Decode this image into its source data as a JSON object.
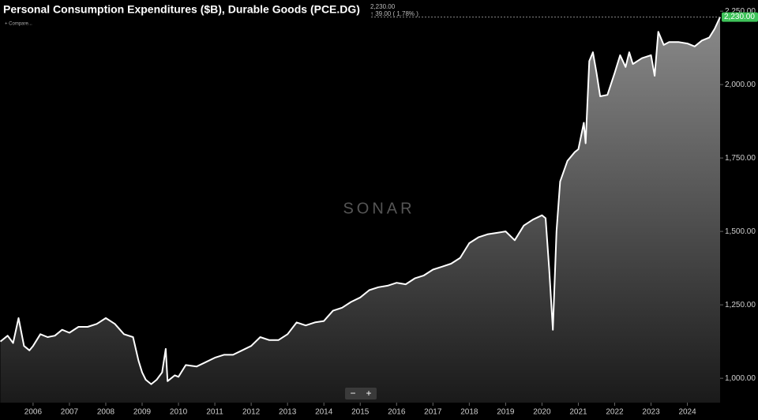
{
  "header": {
    "price": "2,230.00",
    "change": "↑ 39.00 ( 1.78% )",
    "compare": "+ Compare...",
    "watermark": "SONAR",
    "zoom_out": "−",
    "zoom_in": "+"
  },
  "chart_data": {
    "type": "area",
    "title": "Personal Consumption Expenditures ($B), Durable Goods (PCE.DG)",
    "color": "#ffffff",
    "last_color": "#3fc35a",
    "last_value": {
      "value": 2230,
      "label": "2,230.00"
    },
    "x": [
      2005.1,
      2005.3,
      2005.45,
      2005.6,
      2005.75,
      2005.9,
      2006.0,
      2006.2,
      2006.4,
      2006.6,
      2006.8,
      2007.0,
      2007.25,
      2007.5,
      2007.75,
      2008.0,
      2008.25,
      2008.5,
      2008.75,
      2008.9,
      2009.0,
      2009.1,
      2009.25,
      2009.4,
      2009.55,
      2009.65,
      2009.7,
      2009.9,
      2010.0,
      2010.2,
      2010.5,
      2010.75,
      2011.0,
      2011.25,
      2011.5,
      2011.75,
      2012.0,
      2012.25,
      2012.5,
      2012.75,
      2013.0,
      2013.25,
      2013.5,
      2013.75,
      2014.0,
      2014.25,
      2014.5,
      2014.75,
      2015.0,
      2015.25,
      2015.5,
      2015.75,
      2016.0,
      2016.25,
      2016.5,
      2016.75,
      2017.0,
      2017.25,
      2017.5,
      2017.75,
      2018.0,
      2018.25,
      2018.5,
      2018.75,
      2019.0,
      2019.25,
      2019.5,
      2019.75,
      2020.0,
      2020.1,
      2020.2,
      2020.3,
      2020.4,
      2020.5,
      2020.7,
      2020.9,
      2021.0,
      2021.15,
      2021.2,
      2021.3,
      2021.4,
      2021.5,
      2021.6,
      2021.8,
      2022.0,
      2022.15,
      2022.3,
      2022.4,
      2022.5,
      2022.75,
      2023.0,
      2023.1,
      2023.2,
      2023.35,
      2023.5,
      2023.75,
      2024.0,
      2024.2,
      2024.4,
      2024.6,
      2024.75,
      2024.9
    ],
    "values": [
      1125,
      1145,
      1120,
      1205,
      1110,
      1095,
      1110,
      1150,
      1140,
      1145,
      1165,
      1155,
      1175,
      1175,
      1185,
      1205,
      1185,
      1150,
      1140,
      1060,
      1020,
      995,
      980,
      995,
      1020,
      1100,
      990,
      1010,
      1005,
      1045,
      1040,
      1055,
      1070,
      1080,
      1080,
      1095,
      1110,
      1140,
      1130,
      1130,
      1150,
      1190,
      1180,
      1190,
      1195,
      1230,
      1240,
      1260,
      1275,
      1300,
      1310,
      1315,
      1325,
      1320,
      1340,
      1350,
      1370,
      1380,
      1390,
      1410,
      1460,
      1480,
      1490,
      1495,
      1500,
      1470,
      1520,
      1540,
      1555,
      1545,
      1370,
      1165,
      1500,
      1670,
      1740,
      1770,
      1780,
      1870,
      1800,
      2080,
      2110,
      2040,
      1960,
      1965,
      2040,
      2100,
      2060,
      2110,
      2070,
      2090,
      2100,
      2030,
      2180,
      2135,
      2145,
      2145,
      2140,
      2130,
      2150,
      2160,
      2190,
      2230
    ],
    "xlim": [
      2005.09,
      2024.9
    ],
    "xticks": [
      2006,
      2007,
      2008,
      2009,
      2010,
      2011,
      2012,
      2013,
      2014,
      2015,
      2016,
      2017,
      2018,
      2019,
      2020,
      2021,
      2022,
      2023,
      2024
    ],
    "ylim": [
      917,
      2288
    ],
    "yticks": [
      {
        "value": 1000,
        "label": "1,000.00"
      },
      {
        "value": 1250,
        "label": "1,250.00"
      },
      {
        "value": 1500,
        "label": "1,500.00"
      },
      {
        "value": 1750,
        "label": "1,750.00"
      },
      {
        "value": 2000,
        "label": "2,000.00"
      },
      {
        "value": 2250,
        "label": "2,250.00"
      }
    ]
  }
}
